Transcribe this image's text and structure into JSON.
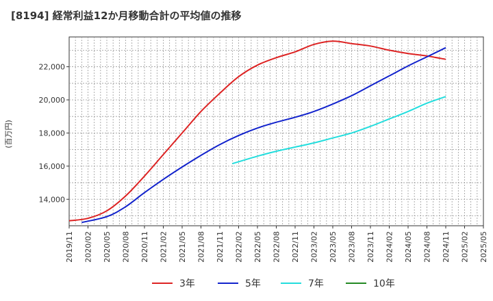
{
  "chart_data": {
    "type": "line",
    "title": "[8194]  経常利益12か月移動合計の平均値の推移",
    "ylabel": "(百万円)",
    "xlabel": "",
    "x_tick_labels": [
      "2019/11",
      "2020/02",
      "2020/05",
      "2020/08",
      "2020/11",
      "2021/02",
      "2021/05",
      "2021/08",
      "2021/11",
      "2022/02",
      "2022/05",
      "2022/08",
      "2022/11",
      "2023/02",
      "2023/05",
      "2023/08",
      "2023/11",
      "2024/02",
      "2024/05",
      "2024/08",
      "2024/11",
      "2025/02",
      "2025/05"
    ],
    "y_tick_labels": [
      "14,000",
      "16,000",
      "18,000",
      "20,000",
      "22,000"
    ],
    "y_ticks": [
      14000,
      16000,
      18000,
      20000,
      22000
    ],
    "ylim": [
      12400,
      23800
    ],
    "xlim": [
      "2019/11",
      "2025/05"
    ],
    "grid": true,
    "legend_position": "bottom",
    "series": [
      {
        "name": "3年",
        "color": "#dd2222",
        "points": [
          [
            "2019/11",
            12700
          ],
          [
            "2020/02",
            12850
          ],
          [
            "2020/05",
            13300
          ],
          [
            "2020/08",
            14200
          ],
          [
            "2020/11",
            15400
          ],
          [
            "2021/02",
            16700
          ],
          [
            "2021/05",
            18000
          ],
          [
            "2021/08",
            19300
          ],
          [
            "2021/11",
            20400
          ],
          [
            "2022/02",
            21400
          ],
          [
            "2022/05",
            22100
          ],
          [
            "2022/08",
            22550
          ],
          [
            "2022/11",
            22900
          ],
          [
            "2023/02",
            23350
          ],
          [
            "2023/05",
            23550
          ],
          [
            "2023/08",
            23400
          ],
          [
            "2023/11",
            23250
          ],
          [
            "2024/02",
            23000
          ],
          [
            "2024/05",
            22800
          ],
          [
            "2024/08",
            22650
          ],
          [
            "2024/11",
            22450
          ]
        ]
      },
      {
        "name": "5年",
        "color": "#1122cc",
        "points": [
          [
            "2020/01",
            12600
          ],
          [
            "2020/05",
            12950
          ],
          [
            "2020/08",
            13550
          ],
          [
            "2020/11",
            14400
          ],
          [
            "2021/02",
            15200
          ],
          [
            "2021/05",
            15950
          ],
          [
            "2021/08",
            16650
          ],
          [
            "2021/11",
            17300
          ],
          [
            "2022/02",
            17850
          ],
          [
            "2022/05",
            18300
          ],
          [
            "2022/08",
            18650
          ],
          [
            "2022/11",
            18950
          ],
          [
            "2023/02",
            19300
          ],
          [
            "2023/05",
            19750
          ],
          [
            "2023/08",
            20250
          ],
          [
            "2023/11",
            20850
          ],
          [
            "2024/02",
            21450
          ],
          [
            "2024/05",
            22050
          ],
          [
            "2024/08",
            22600
          ],
          [
            "2024/11",
            23150
          ]
        ]
      },
      {
        "name": "7年",
        "color": "#22dddd",
        "points": [
          [
            "2022/01",
            16150
          ],
          [
            "2022/05",
            16600
          ],
          [
            "2022/08",
            16900
          ],
          [
            "2022/11",
            17150
          ],
          [
            "2023/02",
            17400
          ],
          [
            "2023/05",
            17700
          ],
          [
            "2023/08",
            18000
          ],
          [
            "2023/11",
            18400
          ],
          [
            "2024/02",
            18850
          ],
          [
            "2024/05",
            19300
          ],
          [
            "2024/08",
            19800
          ],
          [
            "2024/11",
            20200
          ]
        ]
      },
      {
        "name": "10年",
        "color": "#228822",
        "points": []
      }
    ]
  }
}
